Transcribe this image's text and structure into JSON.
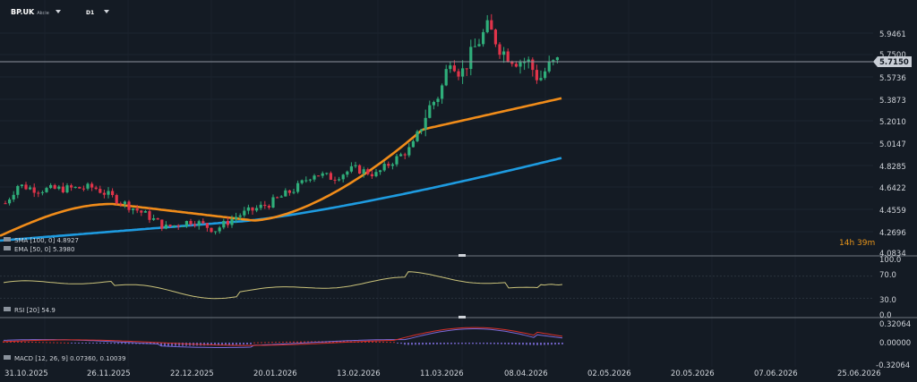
{
  "header": {
    "symbol": "BP.UK",
    "instrument_type": "Akcie",
    "timeframe": "D1"
  },
  "price_axis": {
    "labels": [
      "5.9461",
      "5.7500",
      "5.5736",
      "5.3873",
      "5.2010",
      "5.0147",
      "4.8285",
      "4.6422",
      "4.4559",
      "4.2696",
      "4.0834"
    ],
    "current_price": "5.7150",
    "countdown": "14h 39m"
  },
  "rsi_axis": {
    "labels": [
      "100.0",
      "70.0",
      "30.0",
      "0.0"
    ]
  },
  "macd_axis": {
    "labels": [
      "0.32064",
      "0.00000",
      "-0.32064"
    ]
  },
  "date_axis": {
    "labels": [
      "31.10.2025",
      "26.11.2025",
      "22.12.2025",
      "20.01.2026",
      "13.02.2026",
      "11.03.2026",
      "08.04.2026",
      "02.05.2026",
      "20.05.2026",
      "07.06.2026",
      "25.06.2026"
    ]
  },
  "legend": {
    "sma": "SMA [100, 0] 4.8927",
    "ema": "EMA [50, 0] 5.3980",
    "rsi": "RSI [20] 54.9",
    "macd": "MACD [12, 26, 9] 0.07360, 0.10039"
  },
  "colors": {
    "background": "#141b24",
    "bull": "#2fae7a",
    "bear": "#e0344a",
    "sma": "#1e9be0",
    "ema": "#f08c1a",
    "rsi_line": "#c9c27a",
    "macd_line": "#7a6ad8",
    "macd_signal": "#d9302a"
  },
  "chart_data": {
    "type": "candlestick",
    "price_range": [
      4.0834,
      6.18
    ],
    "rsi_range": [
      0,
      100
    ],
    "macd_range": [
      -0.32064,
      0.32064
    ],
    "sma_100_start": 4.19,
    "sma_100_last": 4.8927,
    "ema_50_start": 4.23,
    "ema_50_last": 5.398,
    "rsi_last": 54.9,
    "macd_last": 0.0736,
    "macd_signal_last": 0.10039
  }
}
